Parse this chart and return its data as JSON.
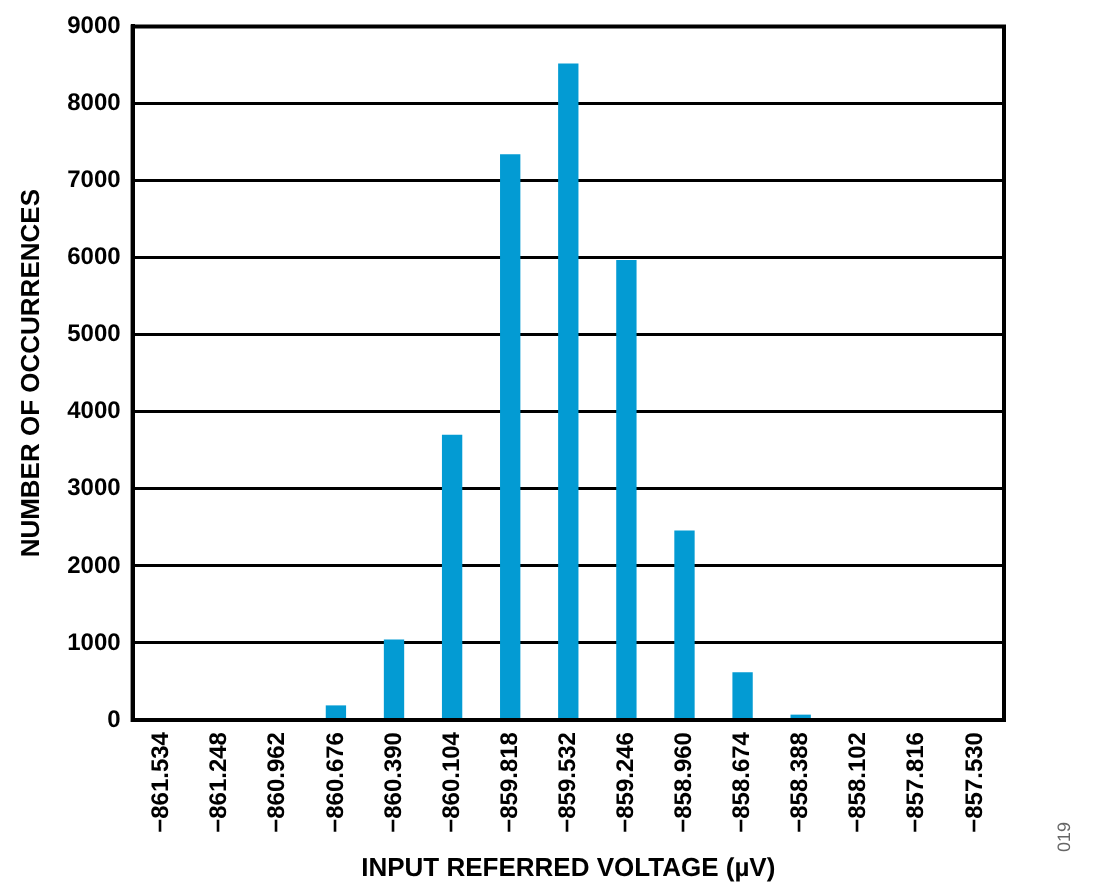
{
  "chart_data": {
    "type": "bar",
    "xlabel": "INPUT REFERRED VOLTAGE (µV)",
    "ylabel": "NUMBER OF OCCURRENCES",
    "categories": [
      "−861.534",
      "−861.248",
      "−860.962",
      "−860.676",
      "−860.390",
      "−860.104",
      "−859.818",
      "−859.532",
      "−859.246",
      "−858.960",
      "−858.674",
      "−858.388",
      "−858.102",
      "−857.816",
      "−857.530"
    ],
    "values": [
      0,
      0,
      0,
      190,
      1045,
      3700,
      7340,
      8520,
      5970,
      2460,
      620,
      70,
      0,
      0,
      0
    ],
    "color": "#039bd3",
    "ylim": [
      0,
      9000
    ],
    "yticks": [
      0,
      1000,
      2000,
      3000,
      4000,
      5000,
      6000,
      7000,
      8000,
      9000
    ],
    "grid": "y",
    "annotations": [
      "019"
    ]
  }
}
